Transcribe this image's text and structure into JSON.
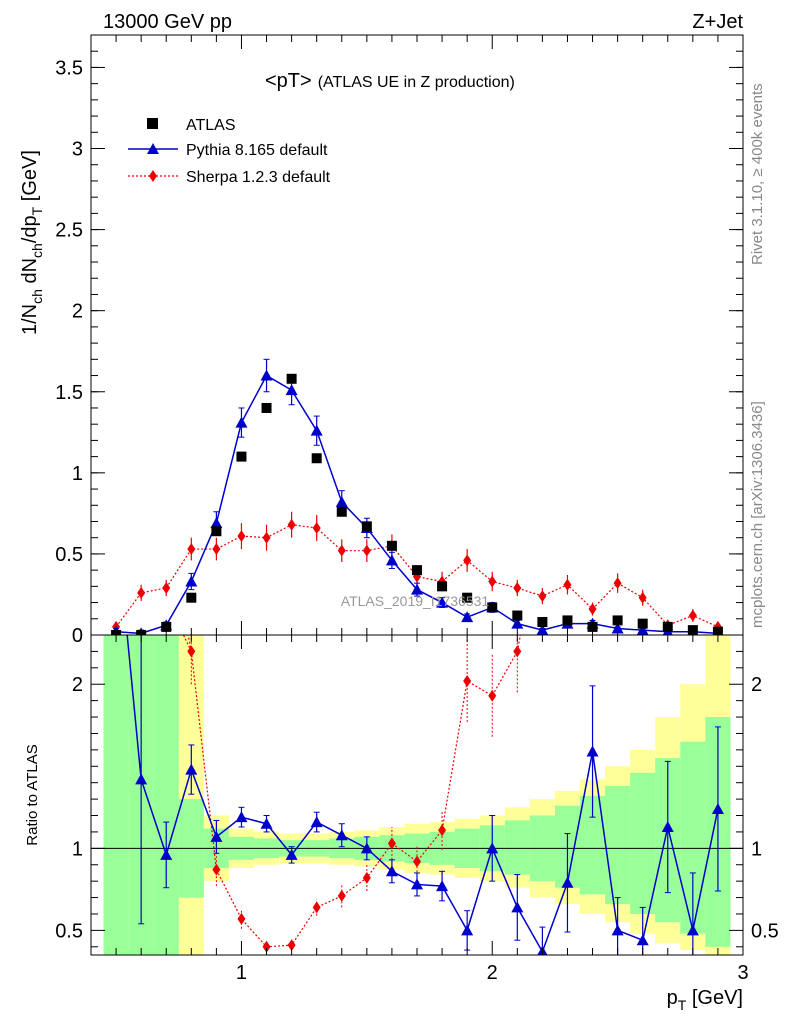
{
  "header": {
    "energy_label": "13000 GeV pp",
    "process_label": "Z+Jet"
  },
  "side_labels": {
    "rivet": "Rivet 3.1.10, ≥ 400k events",
    "mcplots": "mcplots.cern.ch [arXiv:1306.3436]"
  },
  "watermark": "ATLAS_2019_I1736531",
  "chart_data": [
    {
      "type": "scatter",
      "title": "<pT>",
      "subtitle": "(ATLAS UE in Z production)",
      "ylabel": "1/N_ch dN_ch/dp_T [GeV]",
      "ylabel_parts": {
        "main": "1/N",
        "sub1": "ch",
        "mid": " dN",
        "sub2": "ch",
        "mid2": "/dp",
        "sub3": "T",
        "tail": " [GeV]"
      },
      "xlim": [
        0.4,
        3.0
      ],
      "ylim": [
        0,
        3.7
      ],
      "yticks": [
        0,
        0.5,
        1,
        1.5,
        2,
        2.5,
        3,
        3.5
      ],
      "ytick_labels": [
        "0",
        "0.5",
        "1",
        "1.5",
        "2",
        "2.5",
        "3",
        "3.5"
      ],
      "x": [
        0.5,
        0.6,
        0.7,
        0.8,
        0.9,
        1.0,
        1.1,
        1.2,
        1.3,
        1.4,
        1.5,
        1.6,
        1.7,
        1.8,
        1.9,
        2.0,
        2.1,
        2.2,
        2.3,
        2.4,
        2.5,
        2.6,
        2.7,
        2.8,
        2.9
      ],
      "series": [
        {
          "name": "ATLAS",
          "color": "#000000",
          "marker": "square",
          "values": [
            0.0,
            0.0,
            0.05,
            0.23,
            0.64,
            1.1,
            1.4,
            1.58,
            1.09,
            0.76,
            0.67,
            0.55,
            0.4,
            0.3,
            0.23,
            0.17,
            0.12,
            0.08,
            0.09,
            0.05,
            0.09,
            0.07,
            0.05,
            0.03,
            0.02
          ]
        },
        {
          "name": "Pythia 8.165 default",
          "color": "#0000cc",
          "marker": "triangle",
          "line": "solid",
          "values": [
            0.02,
            0.01,
            0.06,
            0.33,
            0.69,
            1.31,
            1.6,
            1.51,
            1.26,
            0.82,
            0.66,
            0.46,
            0.28,
            0.2,
            0.11,
            0.17,
            0.07,
            0.03,
            0.07,
            0.07,
            0.04,
            0.03,
            0.02,
            0.02,
            0.01
          ],
          "errors": [
            0.02,
            0.02,
            0.02,
            0.05,
            0.07,
            0.09,
            0.1,
            0.09,
            0.09,
            0.07,
            0.06,
            0.05,
            0.04,
            0.03,
            0.02,
            0.03,
            0.02,
            0.01,
            0.02,
            0.02,
            0.01,
            0.01,
            0.01,
            0.01,
            0.01
          ]
        },
        {
          "name": "Sherpa 1.2.3 default",
          "color": "#ee0000",
          "marker": "diamond",
          "line": "dotted",
          "values": [
            0.05,
            0.26,
            0.29,
            0.53,
            0.53,
            0.61,
            0.6,
            0.68,
            0.66,
            0.52,
            0.52,
            0.55,
            0.36,
            0.33,
            0.46,
            0.33,
            0.29,
            0.24,
            0.31,
            0.16,
            0.32,
            0.23,
            0.06,
            0.12,
            0.05
          ],
          "errors": [
            0.03,
            0.05,
            0.05,
            0.07,
            0.07,
            0.08,
            0.08,
            0.08,
            0.08,
            0.07,
            0.07,
            0.07,
            0.06,
            0.06,
            0.07,
            0.06,
            0.05,
            0.05,
            0.06,
            0.04,
            0.06,
            0.05,
            0.03,
            0.04,
            0.03
          ]
        }
      ]
    },
    {
      "type": "line",
      "ylabel": "Ratio to ATLAS",
      "xlabel": "p_T [GeV]",
      "xlabel_parts": {
        "main": "p",
        "sub": "T",
        "tail": " [GeV]"
      },
      "xlim": [
        0.4,
        3.0
      ],
      "ylim": [
        0.35,
        2.3
      ],
      "xticks": [
        1,
        2,
        3
      ],
      "xtick_labels": [
        "1",
        "2",
        "3"
      ],
      "yticks": [
        0.5,
        1,
        2
      ],
      "ytick_labels": [
        "0.5",
        "1",
        "2"
      ],
      "reference_line": 1,
      "bin_edges": [
        0.45,
        0.55,
        0.65,
        0.75,
        0.85,
        0.95,
        1.05,
        1.15,
        1.25,
        1.35,
        1.45,
        1.55,
        1.65,
        1.75,
        1.85,
        1.95,
        2.05,
        2.15,
        2.25,
        2.35,
        2.45,
        2.55,
        2.65,
        2.75,
        2.85,
        2.95
      ],
      "bands": [
        {
          "name": "total uncertainty",
          "color": "#ffff99",
          "low": [
            0.35,
            0.35,
            0.35,
            0.35,
            0.8,
            0.88,
            0.9,
            0.91,
            0.91,
            0.9,
            0.89,
            0.87,
            0.85,
            0.84,
            0.82,
            0.8,
            0.76,
            0.7,
            0.66,
            0.6,
            0.55,
            0.48,
            0.42,
            0.38,
            0.35
          ],
          "high": [
            2.3,
            2.3,
            2.3,
            2.3,
            1.2,
            1.12,
            1.1,
            1.09,
            1.09,
            1.1,
            1.11,
            1.13,
            1.15,
            1.16,
            1.18,
            1.2,
            1.25,
            1.3,
            1.35,
            1.42,
            1.5,
            1.6,
            1.8,
            2.0,
            2.3
          ]
        },
        {
          "name": "statistical uncertainty",
          "color": "#99ff99",
          "low": [
            0.35,
            0.35,
            0.35,
            0.7,
            0.88,
            0.93,
            0.94,
            0.95,
            0.95,
            0.94,
            0.93,
            0.92,
            0.91,
            0.9,
            0.88,
            0.86,
            0.84,
            0.8,
            0.76,
            0.72,
            0.66,
            0.6,
            0.55,
            0.48,
            0.4
          ],
          "high": [
            2.3,
            2.3,
            2.3,
            1.3,
            1.12,
            1.07,
            1.06,
            1.05,
            1.05,
            1.06,
            1.07,
            1.08,
            1.09,
            1.1,
            1.12,
            1.14,
            1.17,
            1.2,
            1.26,
            1.32,
            1.38,
            1.46,
            1.55,
            1.65,
            1.8
          ]
        }
      ],
      "series": [
        {
          "name": "Pythia 8.165 default",
          "color": "#0000cc",
          "x": [
            0.6,
            0.7,
            0.8,
            0.9,
            1.0,
            1.1,
            1.2,
            1.3,
            1.4,
            1.5,
            1.6,
            1.7,
            1.8,
            1.9,
            2.0,
            2.1,
            2.2,
            2.3,
            2.4,
            2.5,
            2.6,
            2.7,
            2.8,
            2.9
          ],
          "values": [
            1.42,
            0.96,
            1.48,
            1.07,
            1.19,
            1.15,
            0.96,
            1.16,
            1.08,
            1.0,
            0.86,
            0.78,
            0.77,
            0.5,
            1.0,
            0.64,
            0.37,
            0.79,
            1.59,
            0.5,
            0.44,
            1.13,
            0.5,
            1.24
          ],
          "errors": [
            0.88,
            0.2,
            0.15,
            0.1,
            0.06,
            0.05,
            0.05,
            0.06,
            0.07,
            0.07,
            0.07,
            0.07,
            0.09,
            0.12,
            0.2,
            0.2,
            0.15,
            0.3,
            0.4,
            0.2,
            0.2,
            0.4,
            0.35,
            0.5
          ]
        },
        {
          "name": "Sherpa 1.2.3 default",
          "color": "#ee0000",
          "x": [
            0.8,
            0.9,
            1.0,
            1.1,
            1.2,
            1.3,
            1.4,
            1.5,
            1.6,
            1.7,
            1.8,
            1.9,
            2.0,
            2.1
          ],
          "values": [
            2.2,
            0.87,
            0.57,
            0.4,
            0.41,
            0.64,
            0.71,
            0.82,
            1.03,
            0.92,
            1.11,
            2.02,
            1.93,
            2.2
          ],
          "errors": [
            0.2,
            0.1,
            0.06,
            0.03,
            0.03,
            0.05,
            0.07,
            0.08,
            0.1,
            0.09,
            0.12,
            0.25,
            0.25,
            0.25
          ],
          "offscale": [
            {
              "x": 0.55,
              "direction": "up"
            },
            {
              "x": 0.7,
              "direction": "up"
            },
            {
              "x": 2.2,
              "direction": "up"
            }
          ]
        }
      ]
    }
  ]
}
